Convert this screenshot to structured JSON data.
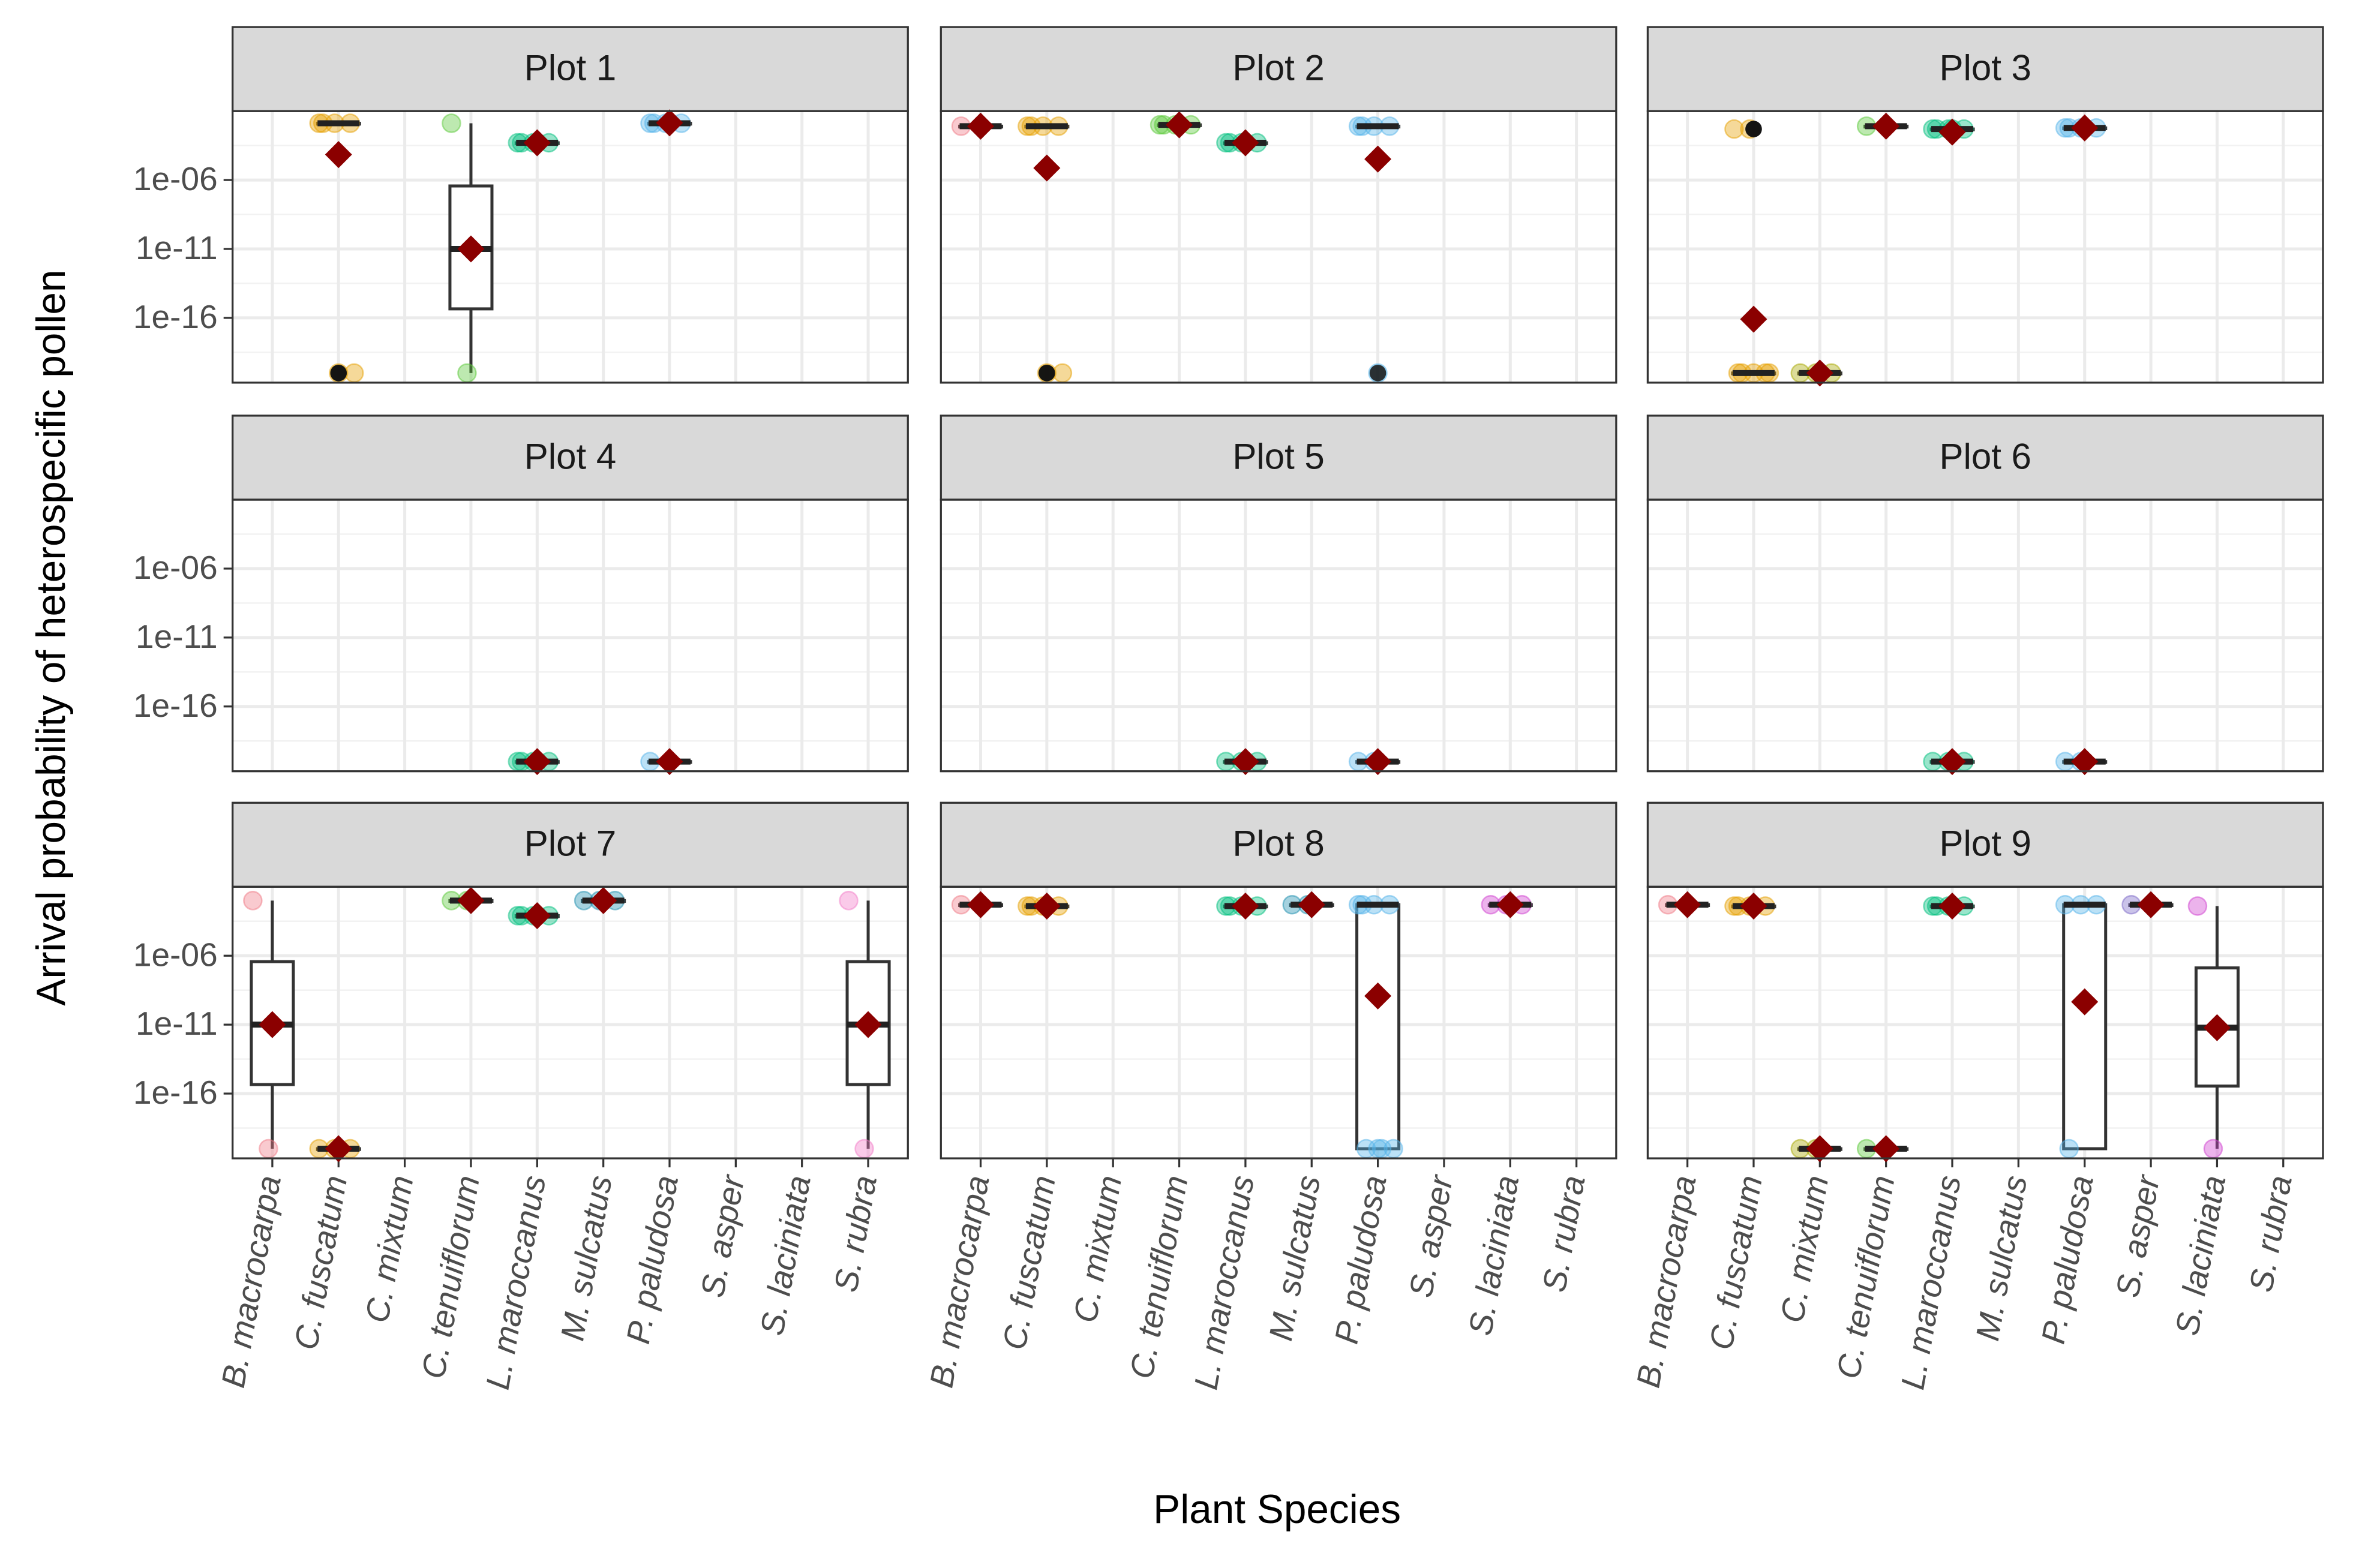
{
  "chart_data": {
    "type": "box",
    "y_label": "Arrival probability of heterospecific pollen",
    "x_label": "Plant Species",
    "log_scale": true,
    "grid": true,
    "mean_color": "#8B0000",
    "categories": [
      "B. macrocarpa",
      "C. fuscatum",
      "C. mixtum",
      "C. tenuiflorum",
      "L. maroccanus",
      "M. sulcatus",
      "P. paludosa",
      "S. asper",
      "S. laciniata",
      "S. rubra"
    ],
    "category_colors": [
      "#F07A86",
      "#E69F00",
      "#A8A800",
      "#5BC93A",
      "#00BF7D",
      "#1F8FB0",
      "#56B4E9",
      "#7B68C8",
      "#D040D0",
      "#F27BC7"
    ],
    "ylim": [
      2e-21,
      0.1
    ],
    "yticks": [
      {
        "value": 1e-06,
        "label": "1e-06"
      },
      {
        "value": 1e-11,
        "label": "1e-11"
      },
      {
        "value": 1e-16,
        "label": "1e-16"
      }
    ],
    "panels": [
      {
        "title": "Plot 1",
        "groups": [
          {
            "category": "C. fuscatum",
            "mean": 7e-05,
            "box": [
              0.013,
              0.013,
              0.013,
              0.013,
              0.013
            ],
            "points": [
              0.013,
              0.013,
              0.013,
              0.013,
              1e-20,
              1e-20
            ]
          },
          {
            "category": "C. tenuiflorum",
            "mean": 1e-11,
            "box": [
              1e-20,
              4.5e-16,
              1e-11,
              3.7e-07,
              0.013
            ],
            "points": [
              0.013,
              1e-20
            ]
          },
          {
            "category": "L. maroccanus",
            "mean": 0.0005,
            "box": [
              0.0005,
              0.0005,
              0.0005,
              0.0005,
              0.0005
            ],
            "points": [
              0.0005,
              0.0005,
              0.0005,
              0.0005,
              0.0005
            ]
          },
          {
            "category": "P. paludosa",
            "mean": 0.014,
            "box": [
              0.013,
              0.013,
              0.013,
              0.013,
              0.013
            ],
            "points": [
              0.013,
              0.013,
              0.013,
              0.013
            ]
          }
        ]
      },
      {
        "title": "Plot 2",
        "groups": [
          {
            "category": "B. macrocarpa",
            "mean": 0.008,
            "box": [
              0.008,
              0.008,
              0.008,
              0.008,
              0.008
            ],
            "points": [
              0.008
            ]
          },
          {
            "category": "C. fuscatum",
            "mean": 7.4e-06,
            "box": [
              0.008,
              0.008,
              0.008,
              0.008,
              0.008
            ],
            "points": [
              0.008,
              0.008,
              0.008,
              0.008,
              1e-20,
              1e-20
            ]
          },
          {
            "category": "C. tenuiflorum",
            "mean": 0.01,
            "box": [
              0.01,
              0.01,
              0.01,
              0.01,
              0.01
            ],
            "points": [
              0.01,
              0.01,
              0.01,
              0.01
            ]
          },
          {
            "category": "L. maroccanus",
            "mean": 0.0005,
            "box": [
              0.0005,
              0.0005,
              0.0005,
              0.0005,
              0.0005
            ],
            "points": [
              0.0005,
              0.0005,
              0.0005,
              0.0005,
              0.0005
            ]
          },
          {
            "category": "P. paludosa",
            "mean": 3.3e-05,
            "box": [
              0.008,
              0.008,
              0.008,
              0.008,
              0.008
            ],
            "points": [
              0.008,
              0.008,
              0.008,
              0.008,
              1e-20
            ]
          }
        ]
      },
      {
        "title": "Plot 3",
        "groups": [
          {
            "category": "C. fuscatum",
            "mean": 8e-17,
            "box": [
              1e-20,
              1e-20,
              1e-20,
              1e-20,
              1e-20
            ],
            "points": [
              0.005,
              0.005,
              1e-20,
              1e-20,
              1e-20,
              1e-20,
              1e-20
            ]
          },
          {
            "category": "C. mixtum",
            "mean": 1e-20,
            "box": [
              1e-20,
              1e-20,
              1e-20,
              1e-20,
              1e-20
            ],
            "points": [
              1e-20,
              1e-20,
              1e-20
            ]
          },
          {
            "category": "C. tenuiflorum",
            "mean": 0.008,
            "box": [
              0.008,
              0.008,
              0.008,
              0.008,
              0.008
            ],
            "points": [
              0.008
            ]
          },
          {
            "category": "L. maroccanus",
            "mean": 0.003,
            "box": [
              0.005,
              0.005,
              0.005,
              0.005,
              0.005
            ],
            "points": [
              0.005,
              0.005,
              0.005,
              0.005,
              0.005
            ]
          },
          {
            "category": "P. paludosa",
            "mean": 0.006,
            "box": [
              0.006,
              0.006,
              0.006,
              0.006,
              0.006
            ],
            "points": [
              0.006,
              0.006,
              0.006,
              0.006,
              0.006
            ]
          }
        ]
      },
      {
        "title": "Plot 4",
        "groups": [
          {
            "category": "L. maroccanus",
            "mean": 1e-20,
            "box": [
              1e-20,
              1e-20,
              1e-20,
              1e-20,
              1e-20
            ],
            "points": [
              1e-20,
              1e-20,
              1e-20,
              1e-20,
              1e-20
            ]
          },
          {
            "category": "P. paludosa",
            "mean": 1e-20,
            "box": [
              1e-20,
              1e-20,
              1e-20,
              1e-20,
              1e-20
            ],
            "points": [
              1e-20
            ]
          }
        ]
      },
      {
        "title": "Plot 5",
        "groups": [
          {
            "category": "L. maroccanus",
            "mean": 1e-20,
            "box": [
              1e-20,
              1e-20,
              1e-20,
              1e-20,
              1e-20
            ],
            "points": [
              1e-20,
              1e-20,
              1e-20
            ]
          },
          {
            "category": "P. paludosa",
            "mean": 1e-20,
            "box": [
              1e-20,
              1e-20,
              1e-20,
              1e-20,
              1e-20
            ],
            "points": [
              1e-20,
              1e-20
            ]
          }
        ]
      },
      {
        "title": "Plot 6",
        "groups": [
          {
            "category": "L. maroccanus",
            "mean": 1e-20,
            "box": [
              1e-20,
              1e-20,
              1e-20,
              1e-20,
              1e-20
            ],
            "points": [
              1e-20,
              1e-20,
              1e-20
            ]
          },
          {
            "category": "P. paludosa",
            "mean": 1e-20,
            "box": [
              1e-20,
              1e-20,
              1e-20,
              1e-20,
              1e-20
            ],
            "points": [
              1e-20,
              1e-20
            ]
          }
        ]
      },
      {
        "title": "Plot 7",
        "groups": [
          {
            "category": "B. macrocarpa",
            "mean": 1e-11,
            "box": [
              1e-20,
              4.5e-16,
              1e-11,
              3.7e-07,
              0.01
            ],
            "points": [
              0.01,
              1e-20
            ]
          },
          {
            "category": "C. fuscatum",
            "mean": 1e-20,
            "box": [
              1e-20,
              1e-20,
              1e-20,
              1e-20,
              1e-20
            ],
            "points": [
              1e-20,
              1e-20,
              1e-20
            ]
          },
          {
            "category": "C. tenuiflorum",
            "mean": 0.01,
            "box": [
              0.01,
              0.01,
              0.01,
              0.01,
              0.01
            ],
            "points": [
              0.01,
              0.01
            ]
          },
          {
            "category": "L. maroccanus",
            "mean": 0.0008,
            "box": [
              0.0008,
              0.0008,
              0.0008,
              0.0008,
              0.0008
            ],
            "points": [
              0.0008,
              0.0008,
              0.0008,
              0.0008,
              0.0008
            ]
          },
          {
            "category": "M. sulcatus",
            "mean": 0.01,
            "box": [
              0.01,
              0.01,
              0.01,
              0.01,
              0.01
            ],
            "points": [
              0.01,
              0.01,
              0.01
            ]
          },
          {
            "category": "S. rubra",
            "mean": 1e-11,
            "box": [
              1e-20,
              4.5e-16,
              1e-11,
              3.7e-07,
              0.01
            ],
            "points": [
              0.01,
              1e-20
            ]
          }
        ]
      },
      {
        "title": "Plot 8",
        "groups": [
          {
            "category": "B. macrocarpa",
            "mean": 0.005,
            "box": [
              0.005,
              0.005,
              0.005,
              0.005,
              0.005
            ],
            "points": [
              0.005
            ]
          },
          {
            "category": "C. fuscatum",
            "mean": 0.004,
            "box": [
              0.004,
              0.004,
              0.004,
              0.004,
              0.004
            ],
            "points": [
              0.004,
              0.004,
              0.004,
              0.004,
              0.004
            ]
          },
          {
            "category": "L. maroccanus",
            "mean": 0.004,
            "box": [
              0.004,
              0.004,
              0.004,
              0.004,
              0.004
            ],
            "points": [
              0.004,
              0.004,
              0.004,
              0.004,
              0.004
            ]
          },
          {
            "category": "M. sulcatus",
            "mean": 0.005,
            "box": [
              0.005,
              0.005,
              0.005,
              0.005,
              0.005
            ],
            "points": [
              0.005,
              0.005
            ]
          },
          {
            "category": "P. paludosa",
            "mean": 1.2e-09,
            "box": [
              1e-20,
              1e-20,
              0.005,
              0.005,
              0.005
            ],
            "points": [
              0.005,
              0.005,
              0.005,
              0.005,
              1e-20,
              1e-20,
              1e-20,
              1e-20
            ]
          },
          {
            "category": "S. laciniata",
            "mean": 0.005,
            "box": [
              0.005,
              0.005,
              0.005,
              0.005,
              0.005
            ],
            "points": [
              0.005,
              0.005,
              0.005
            ]
          }
        ]
      },
      {
        "title": "Plot 9",
        "groups": [
          {
            "category": "B. macrocarpa",
            "mean": 0.005,
            "box": [
              0.005,
              0.005,
              0.005,
              0.005,
              0.005
            ],
            "points": [
              0.005
            ]
          },
          {
            "category": "C. fuscatum",
            "mean": 0.004,
            "box": [
              0.004,
              0.004,
              0.004,
              0.004,
              0.004
            ],
            "points": [
              0.004,
              0.004,
              0.004,
              0.004,
              0.004
            ]
          },
          {
            "category": "C. mixtum",
            "mean": 1e-20,
            "box": [
              1e-20,
              1e-20,
              1e-20,
              1e-20,
              1e-20
            ],
            "points": [
              1e-20,
              1e-20
            ]
          },
          {
            "category": "C. tenuiflorum",
            "mean": 1e-20,
            "box": [
              1e-20,
              1e-20,
              1e-20,
              1e-20,
              1e-20
            ],
            "points": [
              1e-20
            ]
          },
          {
            "category": "L. maroccanus",
            "mean": 0.004,
            "box": [
              0.004,
              0.004,
              0.004,
              0.004,
              0.004
            ],
            "points": [
              0.004,
              0.004,
              0.004,
              0.004,
              0.004
            ]
          },
          {
            "category": "P. paludosa",
            "mean": 4.5e-10,
            "box": [
              1e-20,
              1e-20,
              0.005,
              0.005,
              0.005
            ],
            "points": [
              0.005,
              0.005,
              0.005,
              1e-20
            ]
          },
          {
            "category": "S. asper",
            "mean": 0.005,
            "box": [
              0.005,
              0.005,
              0.005,
              0.005,
              0.005
            ],
            "points": [
              0.005
            ]
          },
          {
            "category": "S. laciniata",
            "mean": 6e-12,
            "box": [
              1e-20,
              3.5e-16,
              6e-12,
              1.3e-07,
              0.004
            ],
            "points": [
              0.004,
              1e-20
            ]
          }
        ]
      }
    ]
  }
}
